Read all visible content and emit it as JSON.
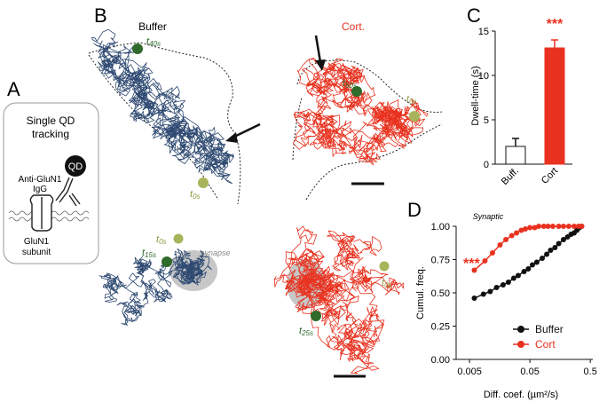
{
  "panel_labels": {
    "a": "A",
    "b": "B",
    "c": "C",
    "d": "D"
  },
  "panel_a": {
    "title_line1": "Single QD",
    "title_line2": "tracking",
    "qd_label": "QD",
    "antibody_line1": "Anti-GluN1",
    "antibody_line2": "IgG",
    "receptor_line1": "GluN1",
    "receptor_line2": "subunit"
  },
  "panel_b": {
    "buffer_title": "Buffer",
    "cort_title": "Cort.",
    "synapse_label": "synapse",
    "time_labels": {
      "buffer_top_start": "t",
      "buffer_top_start_sub": "40s",
      "buffer_top_end": "t",
      "buffer_top_end_sub": "0s",
      "cort_top_start": "t",
      "cort_top_start_sub": "50s",
      "cort_top_end": "t",
      "cort_top_end_sub": "0s",
      "buffer_bot_start": "t",
      "buffer_bot_start_sub": "0s",
      "buffer_bot_end": "t",
      "buffer_bot_end_sub": "15s",
      "cort_bot_start": "t",
      "cort_bot_start_sub": "0s",
      "cort_bot_end": "t",
      "cort_bot_end_sub": "25s"
    },
    "colors": {
      "buffer": "#2f4a72",
      "cort": "#e8321f",
      "dot_dark": "#2f6b2b",
      "dot_light": "#a8b45a",
      "synapse": "#bdbdbd"
    }
  },
  "chart_data": [
    {
      "type": "bar",
      "panel": "C",
      "categories": [
        "Buff.",
        "Cort"
      ],
      "values": [
        2.0,
        13.1
      ],
      "errors": [
        0.9,
        0.9
      ],
      "ylabel": "Dwell-time (s)",
      "ylim": [
        0,
        15
      ],
      "yticks": [
        "0",
        "5",
        "10",
        "15"
      ],
      "annotation": "***",
      "colors": [
        "#ffffff",
        "#e8321f"
      ]
    },
    {
      "type": "line",
      "panel": "D",
      "title": "Synaptic",
      "xlabel": "Diff. coef. (µm²/s)",
      "ylabel": "Cumul. freq.",
      "xticks": [
        "0.005",
        "0.05",
        "0.5"
      ],
      "yticks": [
        "0.00",
        "0.25",
        "0.50",
        "0.75",
        "1.00"
      ],
      "xlim": [
        0.003,
        0.55
      ],
      "ylim": [
        0,
        1
      ],
      "x_scale": "log",
      "annotation": "***",
      "legend_position": "bottom-right",
      "series": [
        {
          "name": "Buffer",
          "color": "#111111",
          "x": [
            0.006,
            0.0085,
            0.011,
            0.014,
            0.018,
            0.022,
            0.027,
            0.032,
            0.04,
            0.047,
            0.055,
            0.065,
            0.08,
            0.095,
            0.11,
            0.13,
            0.15,
            0.18,
            0.21,
            0.24,
            0.27,
            0.3,
            0.33,
            0.36
          ],
          "y": [
            0.46,
            0.49,
            0.51,
            0.54,
            0.56,
            0.58,
            0.61,
            0.63,
            0.66,
            0.68,
            0.71,
            0.73,
            0.76,
            0.79,
            0.82,
            0.84,
            0.87,
            0.9,
            0.92,
            0.94,
            0.95,
            0.97,
            0.99,
            1.0
          ]
        },
        {
          "name": "Cort",
          "color": "#e8321f",
          "x": [
            0.006,
            0.009,
            0.012,
            0.016,
            0.02,
            0.025,
            0.03,
            0.036,
            0.042,
            0.05,
            0.06,
            0.07,
            0.085,
            0.1,
            0.12,
            0.15,
            0.18,
            0.22,
            0.27,
            0.32,
            0.36
          ],
          "y": [
            0.67,
            0.74,
            0.8,
            0.86,
            0.9,
            0.93,
            0.95,
            0.97,
            0.98,
            0.99,
            0.99,
            1.0,
            1.0,
            1.0,
            1.0,
            1.0,
            1.0,
            1.0,
            1.0,
            1.0,
            1.0
          ]
        }
      ]
    }
  ]
}
